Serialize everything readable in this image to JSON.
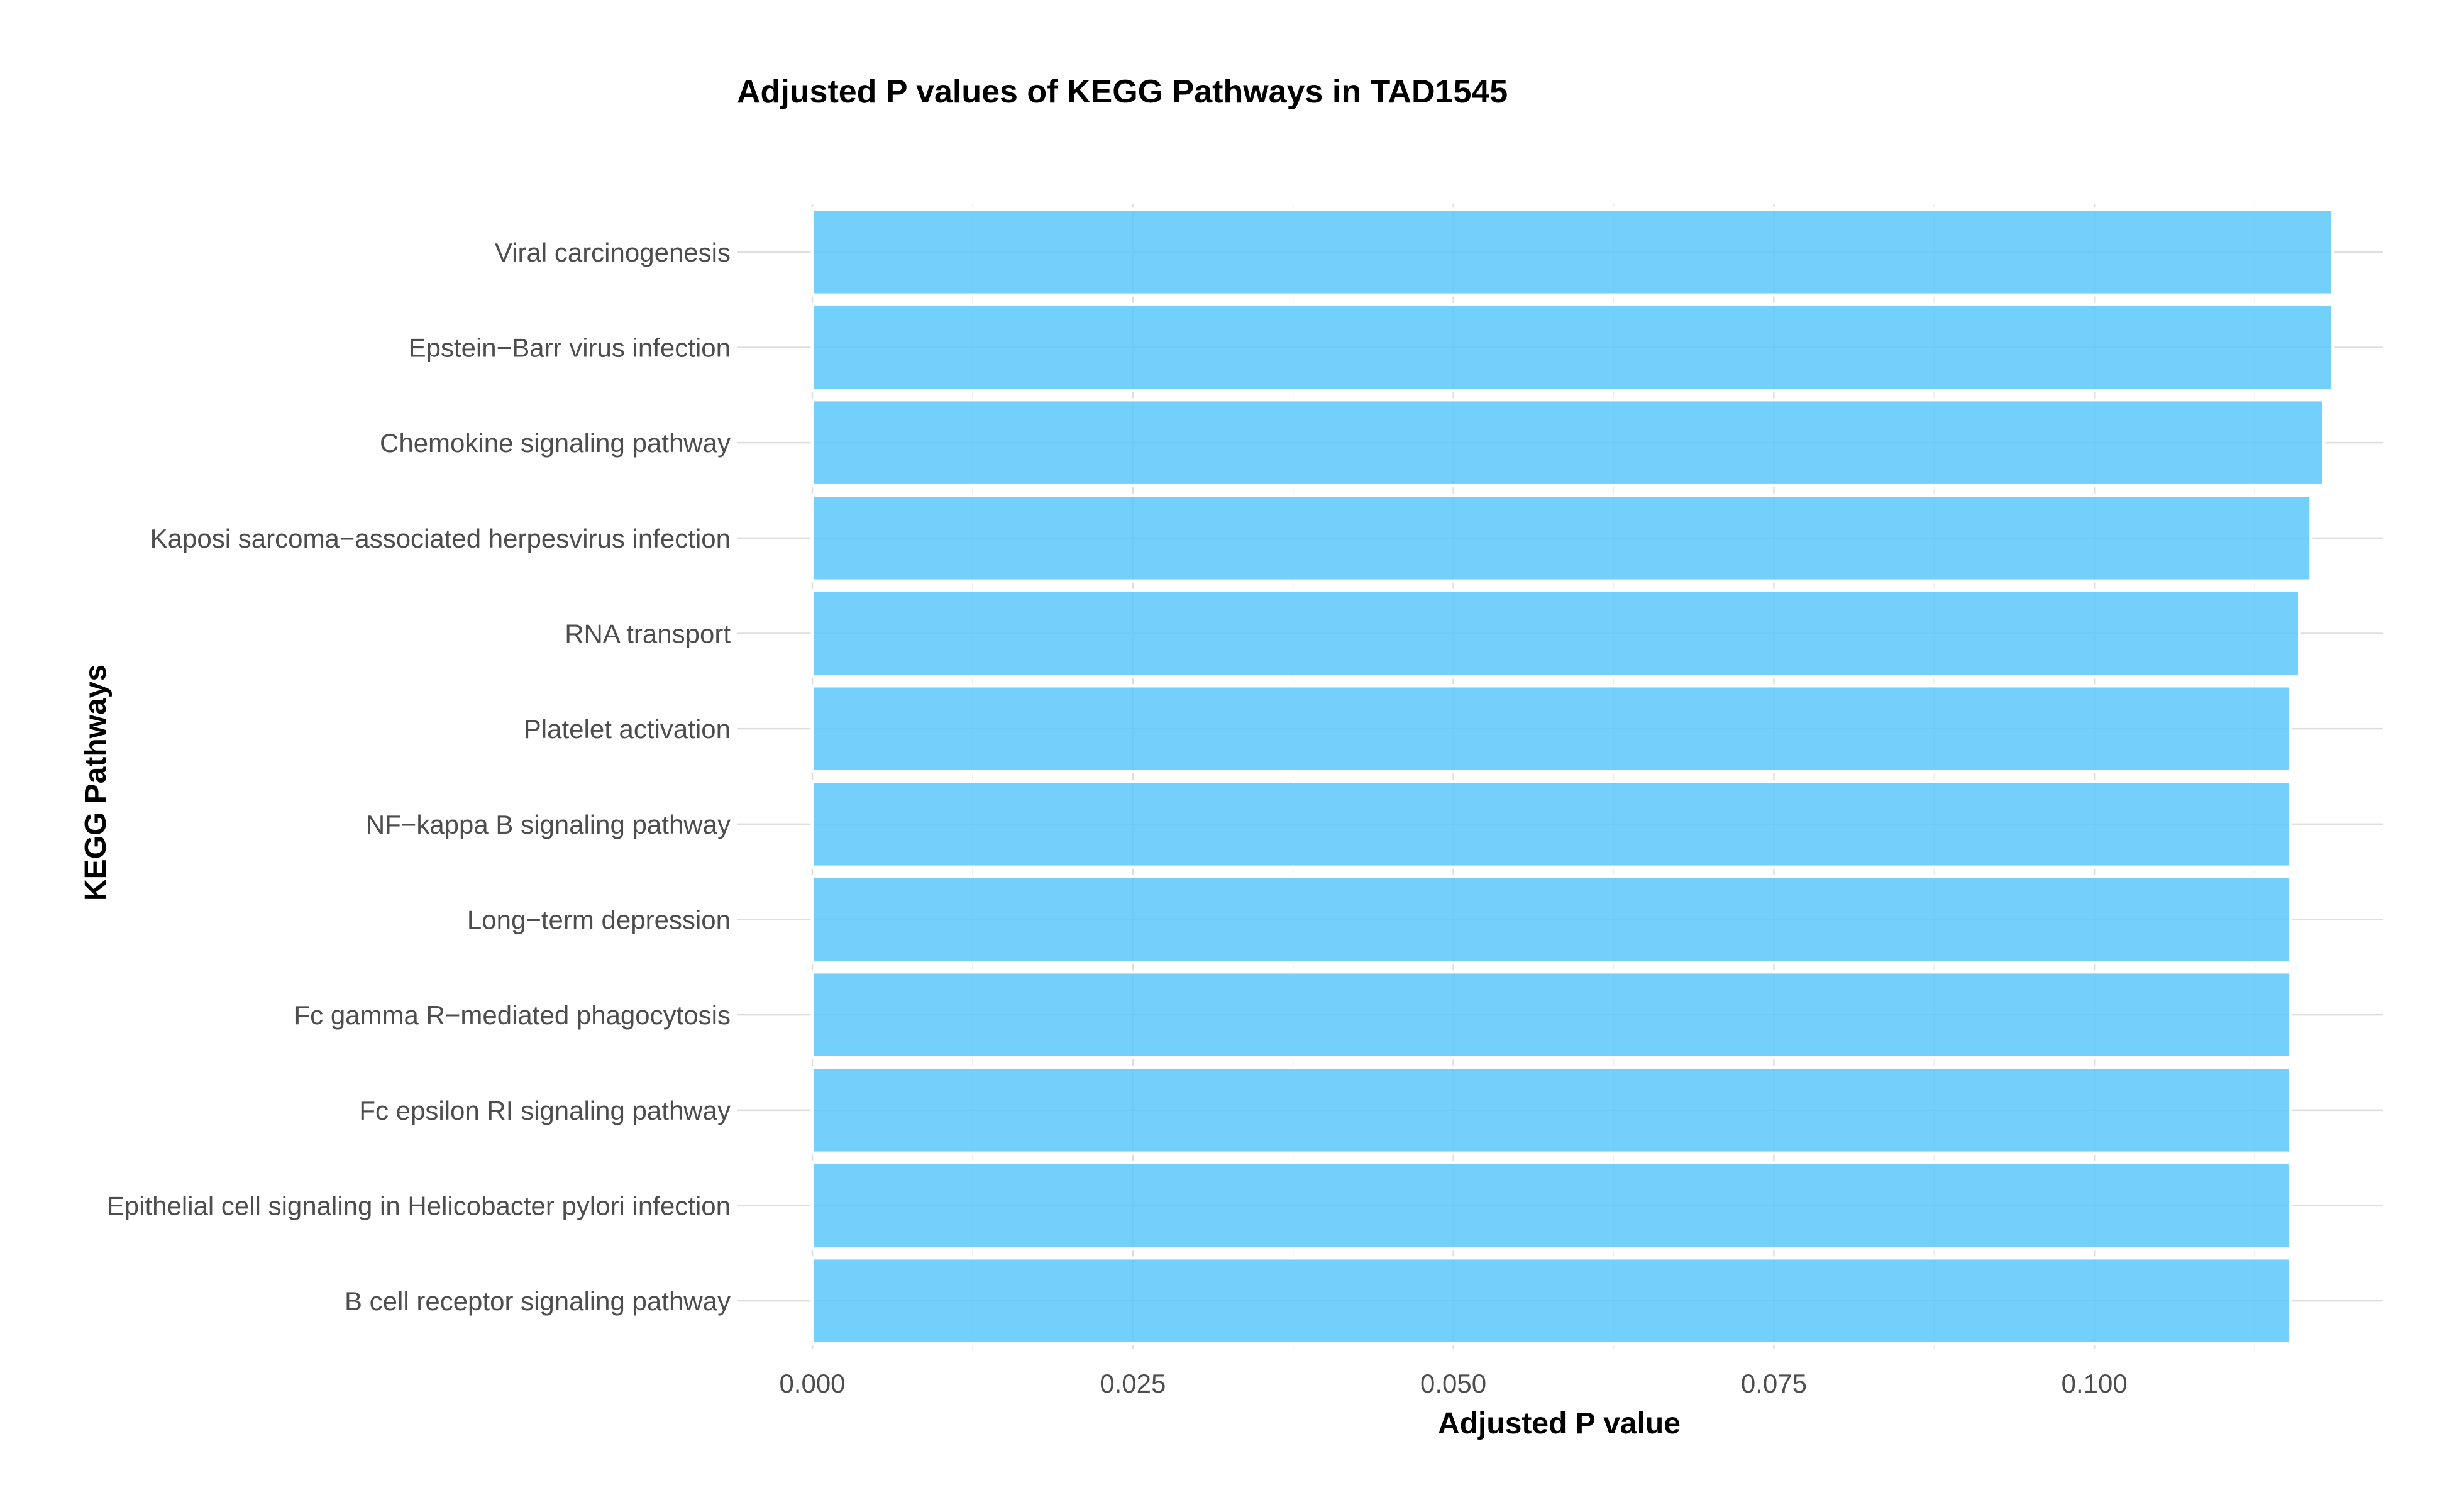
{
  "chart_data": {
    "type": "bar",
    "orientation": "horizontal",
    "title": "Adjusted P values of KEGG Pathways in TAD1545",
    "xlabel": "Adjusted P value",
    "ylabel": "KEGG Pathways",
    "xlim": [
      0,
      0.1225
    ],
    "x_ticks": [
      "0.000",
      "0.025",
      "0.050",
      "0.075",
      "0.100"
    ],
    "x_tick_values": [
      0,
      0.025,
      0.05,
      0.075,
      0.1
    ],
    "grid": true,
    "legend": "none",
    "bar_color": "#5ac8fa",
    "categories": [
      "Viral carcinogenesis",
      "Epstein−Barr virus infection",
      "Chemokine signaling pathway",
      "Kaposi sarcoma−associated herpesvirus infection",
      "RNA transport",
      "Platelet activation",
      "NF−kappa B signaling pathway",
      "Long−term depression",
      "Fc gamma R−mediated phagocytosis",
      "Fc epsilon RI signaling pathway",
      "Epithelial cell signaling in Helicobacter pylori infection",
      "B cell receptor signaling pathway"
    ],
    "values": [
      0.1186,
      0.1186,
      0.1179,
      0.1169,
      0.116,
      0.1153,
      0.1153,
      0.1153,
      0.1153,
      0.1153,
      0.1153,
      0.1153
    ]
  }
}
